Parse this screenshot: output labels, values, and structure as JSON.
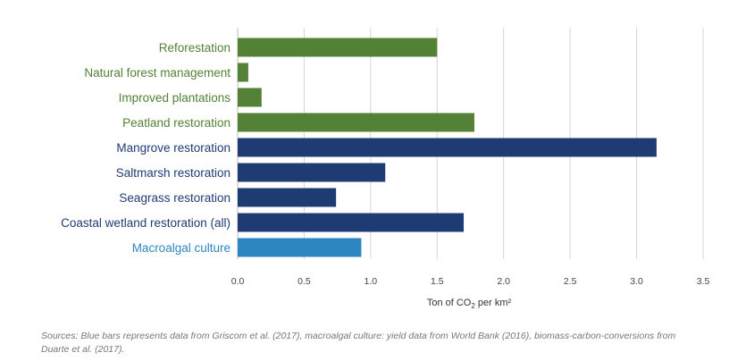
{
  "chart_data": {
    "type": "bar",
    "orientation": "horizontal",
    "categories": [
      "Reforestation",
      "Natural forest management",
      "Improved plantations",
      "Peatland restoration",
      "Mangrove restoration",
      "Saltmarsh restoration",
      "Seagrass restoration",
      "Coastal wetland restoration (all)",
      "Macroalgal culture"
    ],
    "values": [
      1.5,
      0.08,
      0.18,
      1.78,
      3.15,
      1.11,
      0.74,
      1.7,
      0.93
    ],
    "groups": [
      "land",
      "land",
      "land",
      "land",
      "coastal",
      "coastal",
      "coastal",
      "coastal",
      "macroalgal"
    ],
    "group_colors": {
      "land": "#538135",
      "coastal": "#1f3b73",
      "macroalgal": "#2e86c1"
    },
    "xlim": [
      0,
      3.5
    ],
    "xticks": [
      0.0,
      0.5,
      1.0,
      1.5,
      2.0,
      2.5,
      3.0,
      3.5
    ],
    "xtick_labels": [
      "0.0",
      "0.5",
      "1.0",
      "1.5",
      "2.0",
      "2.5",
      "3.0",
      "3.5"
    ],
    "xlabel": {
      "prefix": "Ton of CO",
      "subscript": "2",
      "suffix": " per km²"
    },
    "ylabel": "",
    "title": "",
    "grid": "vertical",
    "legend": "none"
  },
  "source_note": "Sources: Blue bars represents data from Griscom et al. (2017), macroalgal culture: yield data from World Bank (2016), biomass-carbon-conversions from Duarte et al. (2017)."
}
